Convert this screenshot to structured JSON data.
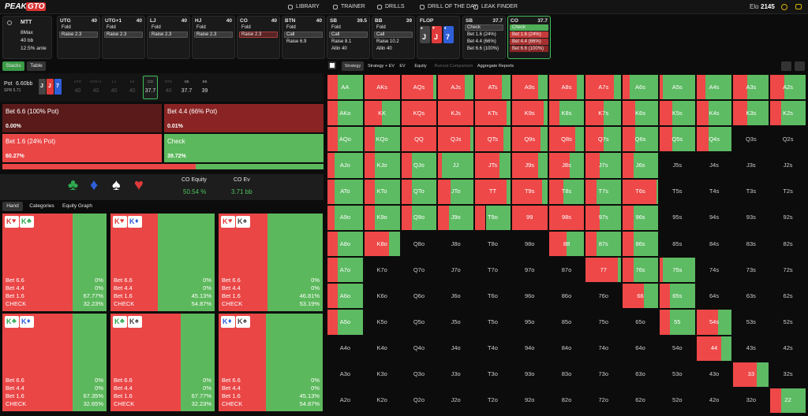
{
  "nav": {
    "logo_main": "PEAK",
    "logo_accent": "GTO",
    "items": [
      "LIBRARY",
      "TRAINER",
      "DRILLS",
      "DRILL OF THE DAY",
      "LEAK FINDER"
    ],
    "elo_label": "Elo",
    "elo": 2145
  },
  "game": {
    "format": "MTT",
    "table": "8Max",
    "depth": "40 bb",
    "ante": "12.5% ante"
  },
  "positions": [
    {
      "name": "UTG",
      "stack": 40,
      "actions": [
        "Fold",
        "Raise 2.3"
      ],
      "selected": 1
    },
    {
      "name": "UTG+1",
      "stack": 40,
      "actions": [
        "Fold",
        "Raise 2.3"
      ],
      "selected": 1
    },
    {
      "name": "LJ",
      "stack": 40,
      "actions": [
        "Fold",
        "Raise 2.3"
      ],
      "selected": 1
    },
    {
      "name": "HJ",
      "stack": 40,
      "actions": [
        "Fold",
        "Raise 2.3"
      ],
      "selected": 1
    },
    {
      "name": "CO",
      "stack": 40,
      "actions": [
        "Fold",
        "Raise 2.3"
      ],
      "selected": 1,
      "hero": true
    },
    {
      "name": "BTN",
      "stack": 40,
      "actions": [
        "Fold",
        "Call",
        "Raise 6.9"
      ],
      "selected": 1
    },
    {
      "name": "SB",
      "stack": 39.5,
      "actions": [
        "Fold",
        "Call",
        "Raise 8.1",
        "Allin 40"
      ],
      "selected": 1
    },
    {
      "name": "BB",
      "stack": 39,
      "actions": [
        "Fold",
        "Call",
        "Raise 10.2",
        "Allin 40"
      ],
      "selected": 1
    },
    {
      "name": "FLOP",
      "cards": [
        {
          "rank": "J",
          "suit": "♠"
        },
        {
          "rank": "J",
          "suit": "♥"
        },
        {
          "rank": "7",
          "suit": "♦"
        }
      ]
    },
    {
      "name": "SB",
      "stack": 37.7,
      "actions": [
        "Check",
        "Bet 1.6 (24%)",
        "Bet 4.4 (66%)",
        "Bet 6.6 (100%)"
      ],
      "selected": 0
    },
    {
      "name": "CO",
      "stack": 37.7,
      "actions": [
        "Check",
        "Bet 1.6 (24%)",
        "Bet 4.4 (66%)",
        "Bet 6.6 (100%)"
      ],
      "active": true
    }
  ],
  "left_tabs": [
    "Stacks",
    "Table"
  ],
  "pot": {
    "label": "Pot",
    "value": "6.60bb",
    "spr": "SPR 5.71"
  },
  "seats": [
    {
      "name": "UTG",
      "stack": 40
    },
    {
      "name": "UTG+1",
      "stack": 40
    },
    {
      "name": "LJ",
      "stack": 40
    },
    {
      "name": "HJ",
      "stack": 40
    },
    {
      "name": "CO",
      "stack": 37.7,
      "current": true
    },
    {
      "name": "BTN",
      "stack": 40
    },
    {
      "name": "SB",
      "stack": 37.7
    },
    {
      "name": "BB",
      "stack": 39
    }
  ],
  "strategy": [
    {
      "name": "Bet 6.6 (100% Pot)",
      "value": 0,
      "label": "0.00%"
    },
    {
      "name": "Bet 4.4 (66% Pot)",
      "value": 0.01,
      "label": "0.01%"
    },
    {
      "name": "Bet 1.6 (24% Pot)",
      "value": 60.27,
      "label": "60.27%"
    },
    {
      "name": "Check",
      "value": 39.72,
      "label": "39.72%"
    }
  ],
  "suits": [
    "♣",
    "♦",
    "♠",
    "♥"
  ],
  "equity": {
    "label": "CO Equity",
    "value": "50.54 %"
  },
  "ev": {
    "label": "CO Ev",
    "value": "3.71 bb"
  },
  "hand_tabs": [
    "Hand",
    "Categories",
    "Equity Graph"
  ],
  "hands": [
    {
      "cards": [
        {
          "rank": "K",
          "suit": "♥"
        },
        {
          "rank": "K",
          "suit": "♣"
        }
      ],
      "actions": [
        {
          "name": "Bet 6.6",
          "value": 0,
          "label": "0%"
        },
        {
          "name": "Bet 4.4",
          "value": 0,
          "label": "0%"
        },
        {
          "name": "Bet 1.6",
          "value": 67.77,
          "label": "67.77%"
        },
        {
          "name": "CHECK",
          "value": 32.23,
          "label": "32.23%"
        }
      ]
    },
    {
      "cards": [
        {
          "rank": "K",
          "suit": "♥"
        },
        {
          "rank": "K",
          "suit": "♦"
        }
      ],
      "actions": [
        {
          "name": "Bet 6.6",
          "value": 0,
          "label": "0%"
        },
        {
          "name": "Bet 4.4",
          "value": 0,
          "label": "0%"
        },
        {
          "name": "Bet 1.6",
          "value": 45.13,
          "label": "45.13%"
        },
        {
          "name": "CHECK",
          "value": 54.87,
          "label": "54.87%"
        }
      ]
    },
    {
      "cards": [
        {
          "rank": "K",
          "suit": "♥"
        },
        {
          "rank": "K",
          "suit": "♠"
        }
      ],
      "actions": [
        {
          "name": "Bet 6.6",
          "value": 0,
          "label": "0%"
        },
        {
          "name": "Bet 4.4",
          "value": 0,
          "label": "0%"
        },
        {
          "name": "Bet 1.6",
          "value": 46.81,
          "label": "46.81%"
        },
        {
          "name": "CHECK",
          "value": 53.19,
          "label": "53.19%"
        }
      ]
    },
    {
      "cards": [
        {
          "rank": "K",
          "suit": "♣"
        },
        {
          "rank": "K",
          "suit": "♦"
        }
      ],
      "actions": [
        {
          "name": "Bet 6.6",
          "value": 0,
          "label": "0%"
        },
        {
          "name": "Bet 4.4",
          "value": 0,
          "label": "0%"
        },
        {
          "name": "Bet 1.6",
          "value": 67.35,
          "label": "67.35%"
        },
        {
          "name": "CHECK",
          "value": 32.65,
          "label": "32.65%"
        }
      ]
    },
    {
      "cards": [
        {
          "rank": "K",
          "suit": "♣"
        },
        {
          "rank": "K",
          "suit": "♠"
        }
      ],
      "actions": [
        {
          "name": "Bet 6.6",
          "value": 0,
          "label": "0%"
        },
        {
          "name": "Bet 4.4",
          "value": 0,
          "label": "0%"
        },
        {
          "name": "Bet 1.6",
          "value": 67.77,
          "label": "67.77%"
        },
        {
          "name": "CHECK",
          "value": 32.23,
          "label": "32.23%"
        }
      ]
    },
    {
      "cards": [
        {
          "rank": "K",
          "suit": "♦"
        },
        {
          "rank": "K",
          "suit": "♠"
        }
      ],
      "actions": [
        {
          "name": "Bet 6.6",
          "value": 0,
          "label": "0%"
        },
        {
          "name": "Bet 4.4",
          "value": 0,
          "label": "0%"
        },
        {
          "name": "Bet 1.6",
          "value": 45.13,
          "label": "45.13%"
        },
        {
          "name": "CHECK",
          "value": 54.87,
          "label": "54.87%"
        }
      ]
    }
  ],
  "right_tabs": [
    "Strategy",
    "Strategy + EV",
    "EV",
    "Equity",
    "Runout Comparison",
    "Aggregate Reports"
  ],
  "range": {
    "hands": [
      [
        "AA",
        "AKs",
        "AQs",
        "AJs",
        "ATs",
        "A9s",
        "A8s",
        "A7s",
        "A6s",
        "A5s",
        "A4s",
        "A3s",
        "A2s"
      ],
      [
        "AKo",
        "KK",
        "KQs",
        "KJs",
        "KTs",
        "K9s",
        "K8s",
        "K7s",
        "K6s",
        "K5s",
        "K4s",
        "K3s",
        "K2s"
      ],
      [
        "AQo",
        "KQo",
        "QQ",
        "QJs",
        "QTs",
        "Q9s",
        "Q8s",
        "Q7s",
        "Q6s",
        "Q5s",
        "Q4s",
        "Q3s",
        "Q2s"
      ],
      [
        "AJo",
        "KJo",
        "QJo",
        "JJ",
        "JTs",
        "J9s",
        "J8s",
        "J7s",
        "J6s",
        "J5s",
        "J4s",
        "J3s",
        "J2s"
      ],
      [
        "ATo",
        "KTo",
        "QTo",
        "JTo",
        "TT",
        "T9s",
        "T8s",
        "T7s",
        "T6s",
        "T5s",
        "T4s",
        "T3s",
        "T2s"
      ],
      [
        "A9o",
        "K9o",
        "Q9o",
        "J9o",
        "T9o",
        "99",
        "98s",
        "97s",
        "96s",
        "95s",
        "94s",
        "93s",
        "92s"
      ],
      [
        "A8o",
        "K8o",
        "Q8o",
        "J8o",
        "T8o",
        "98o",
        "88",
        "87s",
        "86s",
        "85s",
        "84s",
        "83s",
        "82s"
      ],
      [
        "A7o",
        "K7o",
        "Q7o",
        "J7o",
        "T7o",
        "97o",
        "87o",
        "77",
        "76s",
        "75s",
        "74s",
        "73s",
        "72s"
      ],
      [
        "A6o",
        "K6o",
        "Q6o",
        "J6o",
        "T6o",
        "96o",
        "86o",
        "76o",
        "66",
        "65s",
        "64s",
        "63s",
        "62s"
      ],
      [
        "A5o",
        "K5o",
        "Q5o",
        "J5o",
        "T5o",
        "95o",
        "85o",
        "75o",
        "65o",
        "55",
        "54s",
        "53s",
        "52s"
      ],
      [
        "A4o",
        "K4o",
        "Q4o",
        "J4o",
        "T4o",
        "94o",
        "84o",
        "74o",
        "64o",
        "54o",
        "44",
        "43s",
        "42s"
      ],
      [
        "A3o",
        "K3o",
        "Q3o",
        "J3o",
        "T3o",
        "93o",
        "83o",
        "73o",
        "63o",
        "53o",
        "43o",
        "33",
        "32s"
      ],
      [
        "A2o",
        "K2o",
        "Q2o",
        "J2o",
        "T2o",
        "92o",
        "82o",
        "72o",
        "62o",
        "52o",
        "42o",
        "32o",
        "22"
      ]
    ],
    "bet_share": [
      [
        30,
        100,
        90,
        75,
        75,
        75,
        80,
        80,
        20,
        10,
        25,
        40,
        40
      ],
      [
        30,
        50,
        100,
        100,
        90,
        90,
        30,
        50,
        35,
        35,
        35,
        40,
        30
      ],
      [
        30,
        30,
        100,
        90,
        80,
        80,
        75,
        50,
        35,
        35,
        35,
        null,
        null
      ],
      [
        20,
        30,
        30,
        10,
        70,
        75,
        60,
        40,
        30,
        null,
        null,
        null,
        null
      ],
      [
        20,
        30,
        30,
        35,
        90,
        85,
        40,
        30,
        95,
        null,
        null,
        null,
        null
      ],
      [
        20,
        30,
        30,
        30,
        30,
        100,
        100,
        40,
        30,
        null,
        null,
        null,
        null
      ],
      [
        30,
        70,
        null,
        null,
        null,
        null,
        50,
        30,
        30,
        null,
        null,
        null,
        null
      ],
      [
        30,
        null,
        null,
        null,
        null,
        null,
        null,
        90,
        30,
        10,
        null,
        null,
        null
      ],
      [
        30,
        null,
        null,
        null,
        null,
        null,
        null,
        null,
        60,
        30,
        null,
        null,
        null
      ],
      [
        30,
        null,
        null,
        null,
        null,
        null,
        null,
        null,
        null,
        30,
        60,
        null,
        null
      ],
      [
        null,
        null,
        null,
        null,
        null,
        null,
        null,
        null,
        null,
        null,
        70,
        null,
        null
      ],
      [
        null,
        null,
        null,
        null,
        null,
        null,
        null,
        null,
        null,
        null,
        null,
        65,
        null
      ],
      [
        null,
        null,
        null,
        null,
        null,
        null,
        null,
        null,
        null,
        null,
        null,
        null,
        30
      ]
    ]
  }
}
